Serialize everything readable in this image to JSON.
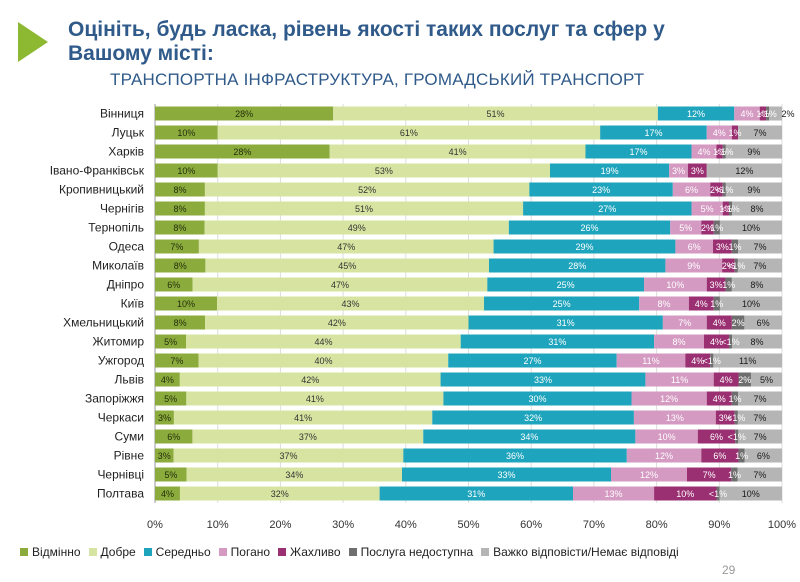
{
  "header": {
    "title": "Оцініть, будь ласка, рівень якості таких послуг та сфер у Вашому місті:",
    "subtitle": "ТРАНСПОРТНА ІНФРАСТРУКТУРА, ГРОМАДСЬКИЙ ТРАНСПОРТ"
  },
  "page_number": "29",
  "colors": {
    "accent_chevron": "#8db832",
    "title": "#2f5a8a"
  },
  "chart_data": {
    "type": "bar",
    "orientation": "horizontal-stacked-100",
    "categories": [
      "Вінниця",
      "Луцьк",
      "Харків",
      "Івано-Франківськ",
      "Кропивницький",
      "Чернігів",
      "Тернопіль",
      "Одеса",
      "Миколаїв",
      "Дніпро",
      "Київ",
      "Хмельницький",
      "Житомир",
      "Ужгород",
      "Львів",
      "Запоріжжя",
      "Черкаси",
      "Суми",
      "Рівне",
      "Чернівці",
      "Полтава"
    ],
    "xlim": [
      0,
      100
    ],
    "x_ticks": [
      "0%",
      "10%",
      "20%",
      "30%",
      "40%",
      "50%",
      "60%",
      "70%",
      "80%",
      "90%",
      "100%"
    ],
    "grid": true,
    "legend_position": "bottom",
    "series": [
      {
        "name": "Відмінно",
        "color": "#8cab3d",
        "label_color": "#1f2d0a",
        "values": [
          28,
          10,
          28,
          10,
          8,
          8,
          8,
          7,
          8,
          6,
          10,
          8,
          5,
          7,
          4,
          5,
          3,
          6,
          3,
          5,
          4
        ],
        "labels": [
          "28%",
          "10%",
          "28%",
          "10%",
          "8%",
          "8%",
          "8%",
          "7%",
          "8%",
          "6%",
          "10%",
          "8%",
          "5%",
          "7%",
          "4%",
          "5%",
          "3%",
          "6%",
          "3%",
          "5%",
          "4%"
        ]
      },
      {
        "name": "Добре",
        "color": "#d7e4a1",
        "label_color": "#333333",
        "values": [
          51,
          61,
          41,
          53,
          52,
          51,
          49,
          47,
          45,
          47,
          43,
          42,
          44,
          40,
          42,
          41,
          41,
          37,
          37,
          34,
          32
        ],
        "labels": [
          "51%",
          "61%",
          "41%",
          "53%",
          "52%",
          "51%",
          "49%",
          "47%",
          "45%",
          "47%",
          "43%",
          "42%",
          "44%",
          "40%",
          "42%",
          "41%",
          "41%",
          "37%",
          "37%",
          "34%",
          "32%"
        ]
      },
      {
        "name": "Середньо",
        "color": "#1ea4bc",
        "label_color": "#ffffff",
        "values": [
          12,
          17,
          17,
          19,
          23,
          27,
          26,
          29,
          28,
          25,
          25,
          31,
          31,
          27,
          33,
          30,
          32,
          34,
          36,
          33,
          31
        ],
        "labels": [
          "12%",
          "17%",
          "17%",
          "19%",
          "23%",
          "27%",
          "26%",
          "29%",
          "28%",
          "25%",
          "25%",
          "31%",
          "31%",
          "27%",
          "33%",
          "30%",
          "32%",
          "34%",
          "36%",
          "33%",
          "31%"
        ]
      },
      {
        "name": "Погано",
        "color": "#d49ac2",
        "label_color": "#ffffff",
        "values": [
          4,
          4,
          4,
          3,
          6,
          5,
          5,
          6,
          9,
          10,
          8,
          7,
          8,
          11,
          11,
          12,
          13,
          10,
          12,
          12,
          13
        ],
        "labels": [
          "4%",
          "4%",
          "4%",
          "3%",
          "6%",
          "5%",
          "5%",
          "6%",
          "9%",
          "10%",
          "8%",
          "7%",
          "8%",
          "11%",
          "11%",
          "12%",
          "13%",
          "10%",
          "12%",
          "12%",
          "13%"
        ]
      },
      {
        "name": "Жахливо",
        "color": "#9a2f72",
        "label_color": "#ffffff",
        "values": [
          1,
          1,
          1,
          3,
          2,
          1,
          2,
          3,
          2,
          3,
          4,
          4,
          4,
          4,
          4,
          4,
          3,
          6,
          6,
          7,
          10
        ],
        "labels": [
          "1%",
          "1%",
          "1%",
          "3%",
          "2%",
          "1%",
          "2%",
          "3%",
          "2%",
          "3%",
          "4%",
          "4%",
          "4%",
          "4%",
          "4%",
          "4%",
          "3%",
          "6%",
          "6%",
          "7%",
          "10%"
        ]
      },
      {
        "name": "Послуга недоступна",
        "color": "#6e6e6e",
        "label_color": "#ffffff",
        "values": [
          0.5,
          0,
          0.5,
          0,
          0.5,
          0.5,
          1,
          1,
          0.5,
          1,
          1,
          2,
          0.5,
          0.5,
          2,
          1,
          0.5,
          0.5,
          1,
          1,
          0.5
        ],
        "labels": [
          "<1%",
          "",
          "<1%",
          "",
          "<1%",
          "<1%",
          "1%",
          "1%",
          "<1%",
          "1%",
          "1%",
          "2%",
          "<1%",
          "<1%",
          "2%",
          "1%",
          "<1%",
          "<1%",
          "1%",
          "1%",
          "<1%"
        ]
      },
      {
        "name": "Важко відповісти/Немає відповіді",
        "color": "#b5b5b5",
        "label_color": "#1a1a1a",
        "values": [
          2,
          7,
          9,
          12,
          9,
          8,
          10,
          7,
          7,
          8,
          10,
          6,
          8,
          11,
          5,
          7,
          7,
          7,
          6,
          7,
          10
        ],
        "labels": [
          "2%",
          "7%",
          "9%",
          "12%",
          "9%",
          "8%",
          "10%",
          "7%",
          "7%",
          "8%",
          "10%",
          "6%",
          "8%",
          "11%",
          "5%",
          "7%",
          "7%",
          "7%",
          "6%",
          "7%",
          "10%"
        ]
      }
    ]
  }
}
